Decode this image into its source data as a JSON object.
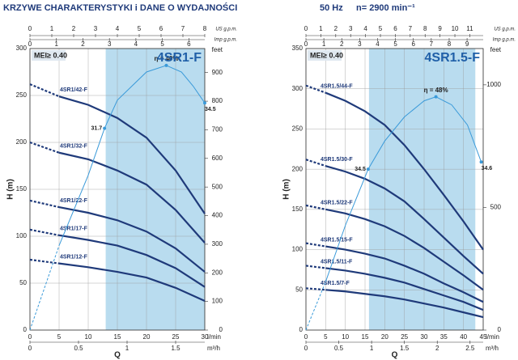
{
  "header": {
    "title": "KRZYWE CHARAKTERYSTYKI i DANE O WYDAJNOŚCI",
    "freq": "50 Hz",
    "speed": "n= 2900 min⁻¹"
  },
  "chart_data": [
    {
      "type": "line",
      "title": "4SR1-F",
      "annotation": "MEI≥ 0.40",
      "xlabel": "l/min",
      "ylabel": "H (m)",
      "qlabel": "Q",
      "y2label": "feet",
      "xlim": [
        0,
        30
      ],
      "xticks": [
        0,
        5,
        10,
        15,
        20,
        25,
        30
      ],
      "ylim": [
        0,
        300
      ],
      "yticks": [
        0,
        50,
        100,
        150,
        200,
        250,
        300
      ],
      "y2lim": [
        0,
        984
      ],
      "y2ticks": [
        0,
        100,
        200,
        300,
        400,
        500,
        600,
        700,
        800,
        900
      ],
      "top_axes": [
        {
          "label": "US g.p.m.",
          "lim": [
            0,
            8
          ],
          "ticks": [
            0,
            1,
            2,
            3,
            4,
            5,
            6,
            7,
            8
          ]
        },
        {
          "label": "Imp g.p.m.",
          "lim": [
            0,
            6.6
          ],
          "ticks": [
            0,
            1,
            2,
            3,
            4,
            5,
            6
          ]
        }
      ],
      "bottom_axis": {
        "label": "m³/h",
        "lim": [
          0,
          1.8
        ],
        "ticks": [
          0,
          0.5,
          1,
          1.5
        ]
      },
      "shade": [
        13,
        30
      ],
      "x": [
        0,
        5,
        10,
        15,
        20,
        25,
        30
      ],
      "series": [
        {
          "name": "4SR1/42-F",
          "color": "#1f3a7a",
          "values": [
            262,
            249,
            240,
            226,
            205,
            170,
            124
          ]
        },
        {
          "name": "4SR1/32-F",
          "color": "#1f3a7a",
          "values": [
            200,
            189,
            182,
            170,
            155,
            128,
            93
          ]
        },
        {
          "name": "4SR1/22-F",
          "color": "#1f3a7a",
          "values": [
            138,
            131,
            125,
            117,
            105,
            87,
            62
          ]
        },
        {
          "name": "4SR1/17-F",
          "color": "#1f3a7a",
          "values": [
            107,
            101,
            96,
            90,
            80,
            66,
            46
          ]
        },
        {
          "name": "4SR1/12-F",
          "color": "#1f3a7a",
          "values": [
            75,
            71,
            67,
            62,
            56,
            45,
            31
          ]
        }
      ],
      "efficiency": {
        "label": "η = 40%",
        "color": "#3a9ad9",
        "x": [
          0,
          5,
          10,
          12.8,
          15,
          20,
          23.4,
          26,
          28,
          30
        ],
        "values": [
          0,
          90,
          165,
          215,
          245,
          275,
          282,
          275,
          260,
          242
        ],
        "points": [
          {
            "x": 12.8,
            "y": 215,
            "eff": 31.7
          },
          {
            "x": 30,
            "y": 242,
            "eff": 34.5
          }
        ]
      }
    },
    {
      "type": "line",
      "title": "4SR1.5-F",
      "annotation": "MEI≥ 0.40",
      "xlabel": "l/min",
      "ylabel": "H (m)",
      "qlabel": "Q",
      "y2label": "feet",
      "xlim": [
        0,
        45
      ],
      "xticks": [
        0,
        5,
        10,
        15,
        20,
        25,
        30,
        35,
        40,
        45
      ],
      "ylim": [
        0,
        350
      ],
      "yticks": [
        0,
        50,
        100,
        150,
        200,
        250,
        300,
        350
      ],
      "y2lim": [
        0,
        1148
      ],
      "y2ticks": [
        0,
        500,
        1000
      ],
      "top_axes": [
        {
          "label": "US g.p.m.",
          "lim": [
            0,
            11.9
          ],
          "ticks": [
            0,
            1,
            2,
            3,
            4,
            5,
            6,
            7,
            8,
            9,
            10,
            11
          ]
        },
        {
          "label": "Imp g.p.m.",
          "lim": [
            0,
            9.9
          ],
          "ticks": [
            0,
            1,
            2,
            3,
            4,
            5,
            6,
            7,
            8,
            9
          ]
        }
      ],
      "bottom_axis": {
        "label": "m³/h",
        "lim": [
          0,
          2.7
        ],
        "ticks": [
          0,
          0.5,
          1,
          1.5,
          2,
          2.5
        ]
      },
      "shade": [
        16,
        43
      ],
      "x": [
        0,
        5,
        10,
        15,
        20,
        25,
        30,
        35,
        40,
        45
      ],
      "series": [
        {
          "name": "4SR1.5/44-F",
          "color": "#1f3a7a",
          "values": [
            304,
            295,
            285,
            272,
            255,
            230,
            200,
            168,
            135,
            100
          ]
        },
        {
          "name": "4SR1.5/30-F",
          "color": "#1f3a7a",
          "values": [
            212,
            204,
            197,
            188,
            176,
            160,
            138,
            115,
            92,
            70
          ]
        },
        {
          "name": "4SR1.5/22-F",
          "color": "#1f3a7a",
          "values": [
            155,
            150,
            145,
            138,
            129,
            117,
            102,
            85,
            68,
            50
          ]
        },
        {
          "name": "4SR1.5/15-F",
          "color": "#1f3a7a",
          "values": [
            108,
            104,
            100,
            95,
            89,
            80,
            70,
            58,
            47,
            35
          ]
        },
        {
          "name": "4SR1.5/11-F",
          "color": "#1f3a7a",
          "values": [
            80,
            77,
            74,
            70,
            65,
            59,
            51,
            43,
            35,
            25
          ]
        },
        {
          "name": "4SR1.5/7-F",
          "color": "#1f3a7a",
          "values": [
            52,
            50,
            48,
            45,
            42,
            38,
            33,
            28,
            22,
            16
          ]
        }
      ],
      "efficiency": {
        "label": "η = 48%",
        "color": "#3a9ad9",
        "x": [
          0,
          5,
          10,
          15.8,
          20,
          25,
          30,
          33,
          37,
          41,
          44.5
        ],
        "values": [
          0,
          60,
          130,
          200,
          235,
          265,
          285,
          290,
          280,
          255,
          209
        ],
        "points": [
          {
            "x": 15.8,
            "y": 200,
            "eff": 34.5
          },
          {
            "x": 44.5,
            "y": 209,
            "eff": 34.6
          }
        ]
      }
    }
  ]
}
